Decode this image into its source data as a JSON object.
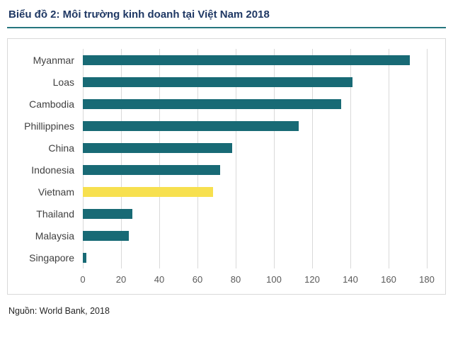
{
  "title": "Biểu đồ 2: Môi trường kinh doanh tại Việt Nam 2018",
  "source": "Nguồn: World Bank, 2018",
  "colors": {
    "bar": "#186a75",
    "highlight": "#f7e04f",
    "title_text": "#1f3864",
    "divider": "#26767e",
    "grid": "#d9d9d9",
    "axis_text": "#595959",
    "label_text": "#404040"
  },
  "chart_data": {
    "type": "bar",
    "orientation": "horizontal",
    "title": "Biểu đồ 2: Môi trường kinh doanh tại Việt Nam 2018",
    "categories": [
      "Myanmar",
      "Loas",
      "Cambodia",
      "Phillippines",
      "China",
      "Indonesia",
      "Vietnam",
      "Thailand",
      "Malaysia",
      "Singapore"
    ],
    "values": [
      171,
      141,
      135,
      113,
      78,
      72,
      68,
      26,
      24,
      2
    ],
    "highlight_category": "Vietnam",
    "xlabel": "",
    "ylabel": "",
    "xlim": [
      0,
      180
    ],
    "xticks": [
      0,
      20,
      40,
      60,
      80,
      100,
      120,
      140,
      160,
      180
    ],
    "grid": true,
    "legend": false
  }
}
